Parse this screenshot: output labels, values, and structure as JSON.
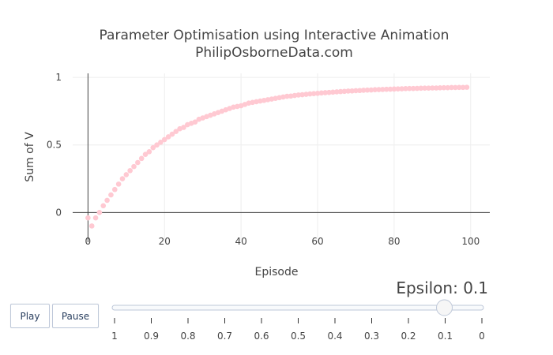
{
  "controls": {
    "play_label": "Play",
    "pause_label": "Pause"
  },
  "slider": {
    "prefix": "Epsilon: ",
    "current": "0.1",
    "steps": [
      "1",
      "0.9",
      "0.8",
      "0.7",
      "0.6",
      "0.5",
      "0.4",
      "0.3",
      "0.2",
      "0.1",
      "0"
    ],
    "active_index": 9
  },
  "chart_data": {
    "type": "scatter",
    "title": [
      "Parameter Optimisation using Interactive Animation",
      "PhilipOsborneData.com"
    ],
    "xlabel": "Episode",
    "ylabel": "Sum of V",
    "xlim": [
      -4,
      105
    ],
    "ylim": [
      -0.22,
      1.03
    ],
    "x_ticks": [
      0,
      20,
      40,
      60,
      80,
      100
    ],
    "y_ticks": [
      0,
      0.5,
      1
    ],
    "grid": true,
    "marker_color": "#ffc9d2",
    "zero_line_color": "#444444",
    "series": [
      {
        "x": [
          0,
          1,
          2,
          3,
          4,
          5,
          6,
          7,
          8,
          9,
          10,
          11,
          12,
          13,
          14,
          15,
          16,
          17,
          18,
          19,
          20,
          21,
          22,
          23,
          24,
          25,
          26,
          27,
          28,
          29,
          30,
          31,
          32,
          33,
          34,
          35,
          36,
          37,
          38,
          39,
          40,
          41,
          42,
          43,
          44,
          45,
          46,
          47,
          48,
          49,
          50,
          51,
          52,
          53,
          54,
          55,
          56,
          57,
          58,
          59,
          60,
          61,
          62,
          63,
          64,
          65,
          66,
          67,
          68,
          69,
          70,
          71,
          72,
          73,
          74,
          75,
          76,
          77,
          78,
          79,
          80,
          81,
          82,
          83,
          84,
          85,
          86,
          87,
          88,
          89,
          90,
          91,
          92,
          93,
          94,
          95,
          96,
          97,
          98,
          99
        ],
        "y": [
          -0.04,
          -0.1,
          -0.04,
          0.0,
          0.05,
          0.09,
          0.13,
          0.17,
          0.21,
          0.25,
          0.28,
          0.31,
          0.34,
          0.37,
          0.4,
          0.43,
          0.45,
          0.48,
          0.5,
          0.52,
          0.54,
          0.56,
          0.58,
          0.6,
          0.62,
          0.63,
          0.65,
          0.66,
          0.67,
          0.69,
          0.7,
          0.71,
          0.72,
          0.73,
          0.74,
          0.75,
          0.76,
          0.77,
          0.78,
          0.785,
          0.79,
          0.8,
          0.81,
          0.815,
          0.82,
          0.825,
          0.83,
          0.835,
          0.84,
          0.845,
          0.85,
          0.855,
          0.86,
          0.862,
          0.866,
          0.87,
          0.872,
          0.875,
          0.878,
          0.88,
          0.882,
          0.885,
          0.887,
          0.889,
          0.891,
          0.893,
          0.895,
          0.897,
          0.899,
          0.9,
          0.902,
          0.903,
          0.905,
          0.906,
          0.907,
          0.909,
          0.91,
          0.911,
          0.912,
          0.913,
          0.914,
          0.915,
          0.916,
          0.917,
          0.918,
          0.918,
          0.919,
          0.92,
          0.921,
          0.921,
          0.922,
          0.922,
          0.923,
          0.924,
          0.924,
          0.925,
          0.925,
          0.926,
          0.926,
          0.927
        ]
      }
    ]
  }
}
